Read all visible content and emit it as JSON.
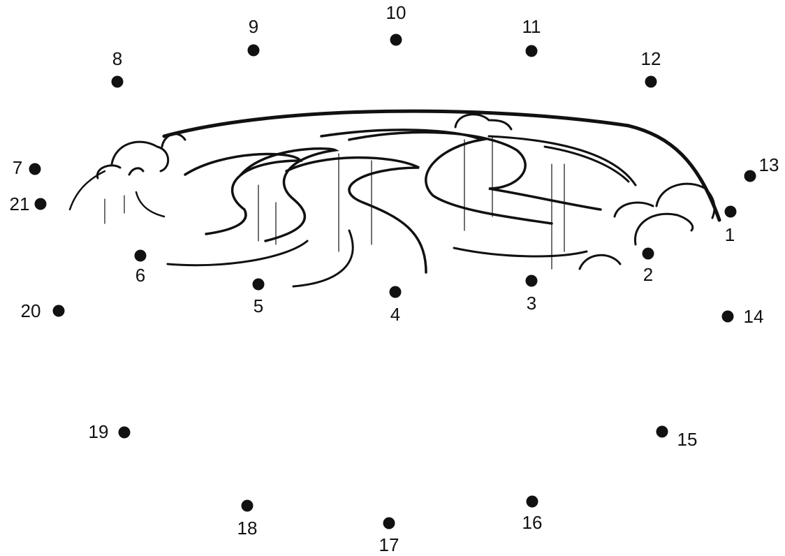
{
  "dots": [
    {
      "label": "1"
    },
    {
      "label": "2"
    },
    {
      "label": "3"
    },
    {
      "label": "4"
    },
    {
      "label": "5"
    },
    {
      "label": "6"
    },
    {
      "label": "7"
    },
    {
      "label": "8"
    },
    {
      "label": "9"
    },
    {
      "label": "10"
    },
    {
      "label": "11"
    },
    {
      "label": "12"
    },
    {
      "label": "13"
    },
    {
      "label": "14"
    },
    {
      "label": "15"
    },
    {
      "label": "16"
    },
    {
      "label": "17"
    },
    {
      "label": "18"
    },
    {
      "label": "19"
    },
    {
      "label": "20"
    },
    {
      "label": "21"
    }
  ]
}
